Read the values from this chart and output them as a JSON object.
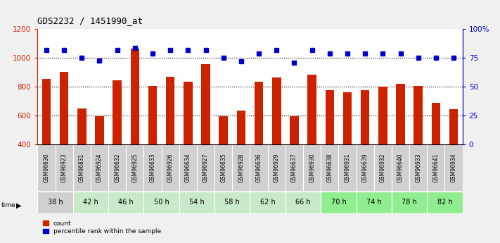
{
  "title": "GDS2232 / 1451990_at",
  "samples": [
    "GSM96630",
    "GSM96923",
    "GSM96831",
    "GSM96924",
    "GSM96632",
    "GSM96925",
    "GSM96633",
    "GSM96926",
    "GSM96634",
    "GSM96927",
    "GSM96635",
    "GSM96928",
    "GSM96636",
    "GSM96929",
    "GSM96637",
    "GSM96930",
    "GSM96638",
    "GSM96931",
    "GSM96639",
    "GSM96932",
    "GSM96640",
    "GSM96933",
    "GSM96641",
    "GSM96934"
  ],
  "counts": [
    855,
    905,
    650,
    595,
    845,
    1065,
    805,
    870,
    835,
    960,
    595,
    635,
    835,
    865,
    595,
    885,
    775,
    765,
    775,
    800,
    820,
    805,
    690,
    645
  ],
  "percentiles": [
    82,
    82,
    75,
    73,
    82,
    84,
    79,
    82,
    82,
    82,
    75,
    72,
    79,
    82,
    71,
    82,
    79,
    79,
    79,
    79,
    79,
    75,
    75,
    75
  ],
  "time_groups": [
    {
      "label": "38 h",
      "indices": [
        0,
        1
      ],
      "color": "#d0d0d0"
    },
    {
      "label": "42 h",
      "indices": [
        2,
        3
      ],
      "color": "#c8eac8"
    },
    {
      "label": "46 h",
      "indices": [
        4,
        5
      ],
      "color": "#c8eac8"
    },
    {
      "label": "50 h",
      "indices": [
        6,
        7
      ],
      "color": "#c8eac8"
    },
    {
      "label": "54 h",
      "indices": [
        8,
        9
      ],
      "color": "#c8eac8"
    },
    {
      "label": "58 h",
      "indices": [
        10,
        11
      ],
      "color": "#c8eac8"
    },
    {
      "label": "62 h",
      "indices": [
        12,
        13
      ],
      "color": "#c8eac8"
    },
    {
      "label": "66 h",
      "indices": [
        14,
        15
      ],
      "color": "#c8eac8"
    },
    {
      "label": "70 h",
      "indices": [
        16,
        17
      ],
      "color": "#90ee90"
    },
    {
      "label": "74 h",
      "indices": [
        18,
        19
      ],
      "color": "#90ee90"
    },
    {
      "label": "78 h",
      "indices": [
        20,
        21
      ],
      "color": "#90ee90"
    },
    {
      "label": "82 h",
      "indices": [
        22,
        23
      ],
      "color": "#90ee90"
    }
  ],
  "sample_box_color": "#d0d0d0",
  "bar_color": "#cc2200",
  "dot_color": "#0000cc",
  "ylim_left": [
    400,
    1200
  ],
  "ylim_right": [
    0,
    100
  ],
  "yticks_left": [
    400,
    600,
    800,
    1000,
    1200
  ],
  "yticks_right": [
    0,
    25,
    50,
    75,
    100
  ],
  "grid_values": [
    600,
    800,
    1000
  ],
  "bg_color": "#f0f0f0",
  "plot_bg": "#ffffff",
  "legend_count_label": "count",
  "legend_pct_label": "percentile rank within the sample"
}
